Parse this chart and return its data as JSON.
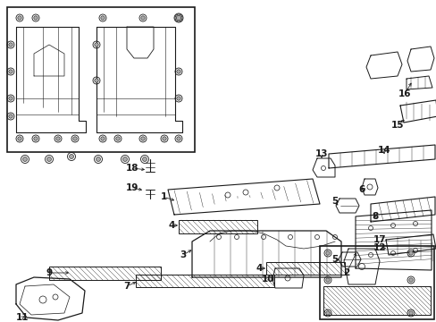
{
  "background_color": "#ffffff",
  "line_color": "#1a1a1a",
  "label_color": "#1a1a1a",
  "figsize": [
    4.89,
    3.6
  ],
  "dpi": 100
}
